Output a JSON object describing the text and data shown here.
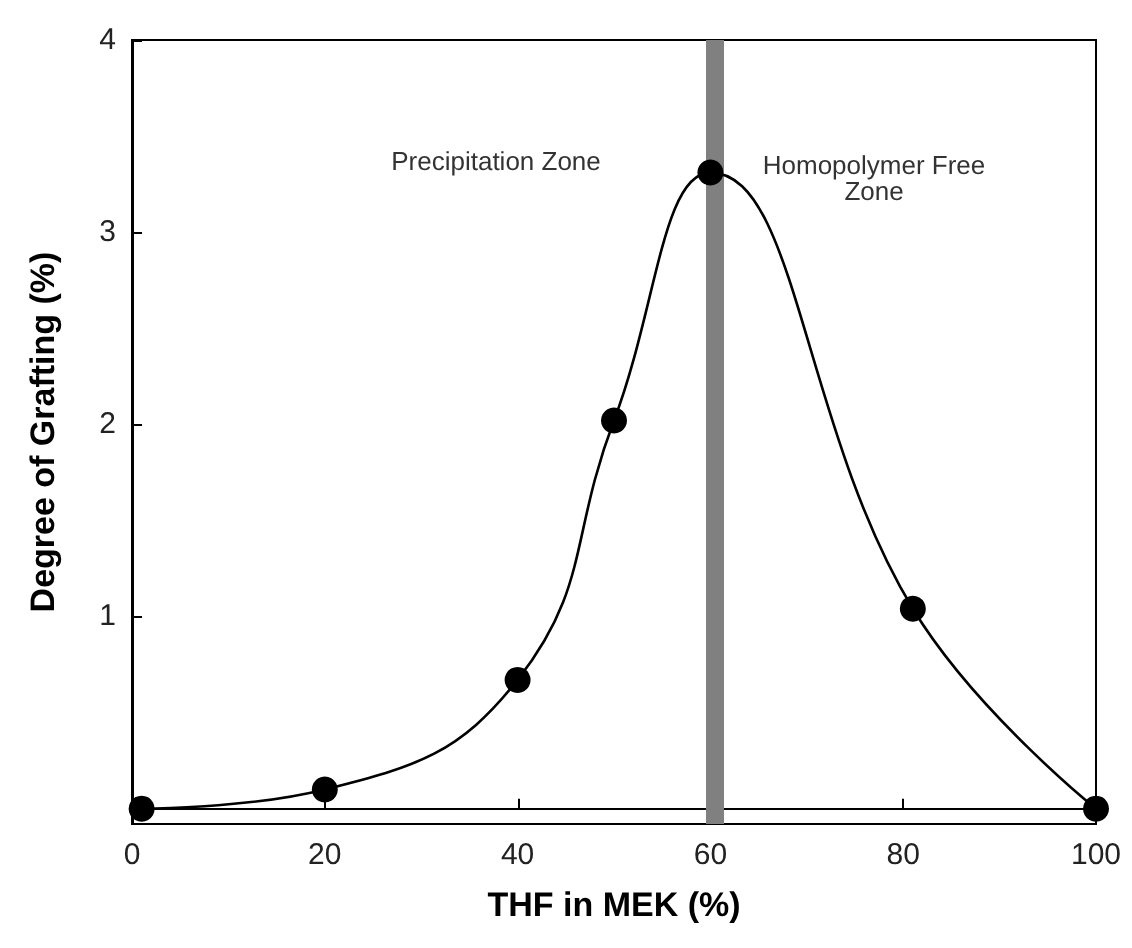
{
  "chart_data": {
    "type": "line",
    "xlabel": "THF in MEK (%)",
    "ylabel": "Degree of Grafting (%)",
    "x": [
      1,
      20,
      40,
      50,
      60,
      81,
      100
    ],
    "series": [
      {
        "color": "#000000",
        "values": [
          0,
          0.1,
          0.67,
          2.02,
          3.31,
          1.04,
          0
        ]
      }
    ],
    "xlim": [
      0,
      100
    ],
    "xticks": [
      0,
      20,
      40,
      60,
      80,
      100
    ],
    "ylim": [
      -0.08,
      4
    ],
    "yticks": [
      1,
      2,
      3,
      4
    ],
    "marker": "circle",
    "line_style": "solid",
    "ref_lines": [
      {
        "axis": "x",
        "value": 60.5,
        "color": "#808080"
      }
    ],
    "annotations": [
      "Precipitation Zone",
      "Homopolymer Free\nZone"
    ]
  }
}
